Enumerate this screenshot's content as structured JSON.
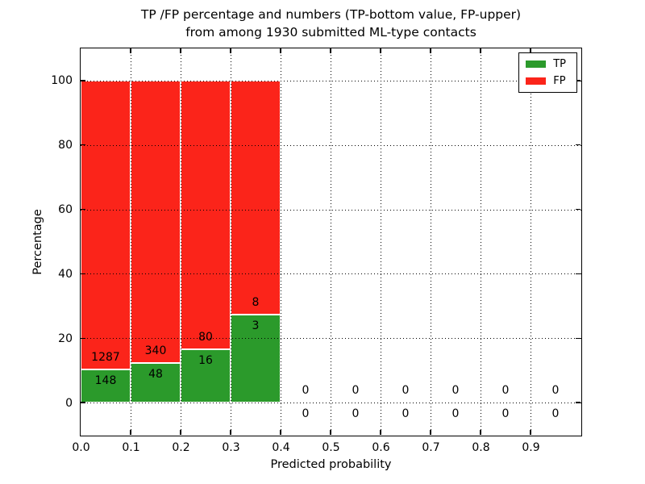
{
  "figure": {
    "title_line1": "TP /FP percentage and numbers (TP-bottom value, FP-upper)",
    "title_line2": "from among 1930 submitted ML-type contacts"
  },
  "legend": {
    "tp_label": "TP",
    "fp_label": "FP"
  },
  "chart_data": {
    "type": "bar",
    "stacked": true,
    "title": "TP /FP percentage and numbers (TP-bottom value, FP-upper)\nfrom among 1930 submitted ML-type contacts",
    "xlabel": "Predicted probability",
    "ylabel": "Percentage",
    "xlim": [
      0.0,
      1.0
    ],
    "ylim": [
      -10,
      110
    ],
    "xticks": [
      0.0,
      0.1,
      0.2,
      0.3,
      0.4,
      0.5,
      0.6,
      0.7,
      0.8,
      0.9
    ],
    "xtick_labels": [
      "0.0",
      "0.1",
      "0.2",
      "0.3",
      "0.4",
      "0.5",
      "0.6",
      "0.7",
      "0.8",
      "0.9"
    ],
    "yticks": [
      0,
      20,
      40,
      60,
      80,
      100
    ],
    "ytick_labels": [
      "0",
      "20",
      "40",
      "60",
      "80",
      "100"
    ],
    "grid": "dotted, both axes, drawn over bars",
    "legend_position": "upper right",
    "total_contacts": 1930,
    "colors": {
      "tp": "#2b9a2b",
      "fp": "#fb241a",
      "text": "#000000",
      "background": "#ffffff"
    },
    "series": [
      {
        "name": "TP",
        "counts": [
          148,
          48,
          16,
          3,
          0,
          0,
          0,
          0,
          0,
          0
        ]
      },
      {
        "name": "FP",
        "counts": [
          1287,
          340,
          80,
          8,
          0,
          0,
          0,
          0,
          0,
          0
        ]
      }
    ],
    "bins": [
      {
        "range": [
          0.0,
          0.1
        ],
        "tp": 148,
        "fp": 1287,
        "tp_pct": 10.31,
        "fp_pct": 89.69
      },
      {
        "range": [
          0.1,
          0.2
        ],
        "tp": 48,
        "fp": 340,
        "tp_pct": 12.37,
        "fp_pct": 87.63
      },
      {
        "range": [
          0.2,
          0.3
        ],
        "tp": 16,
        "fp": 80,
        "tp_pct": 16.67,
        "fp_pct": 83.33
      },
      {
        "range": [
          0.3,
          0.4
        ],
        "tp": 3,
        "fp": 8,
        "tp_pct": 27.27,
        "fp_pct": 72.73
      },
      {
        "range": [
          0.4,
          0.5
        ],
        "tp": 0,
        "fp": 0,
        "tp_pct": 0,
        "fp_pct": 0
      },
      {
        "range": [
          0.5,
          0.6
        ],
        "tp": 0,
        "fp": 0,
        "tp_pct": 0,
        "fp_pct": 0
      },
      {
        "range": [
          0.6,
          0.7
        ],
        "tp": 0,
        "fp": 0,
        "tp_pct": 0,
        "fp_pct": 0
      },
      {
        "range": [
          0.7,
          0.8
        ],
        "tp": 0,
        "fp": 0,
        "tp_pct": 0,
        "fp_pct": 0
      },
      {
        "range": [
          0.8,
          0.9
        ],
        "tp": 0,
        "fp": 0,
        "tp_pct": 0,
        "fp_pct": 0
      },
      {
        "range": [
          0.9,
          1.0
        ],
        "tp": 0,
        "fp": 0,
        "tp_pct": 0,
        "fp_pct": 0
      }
    ]
  }
}
